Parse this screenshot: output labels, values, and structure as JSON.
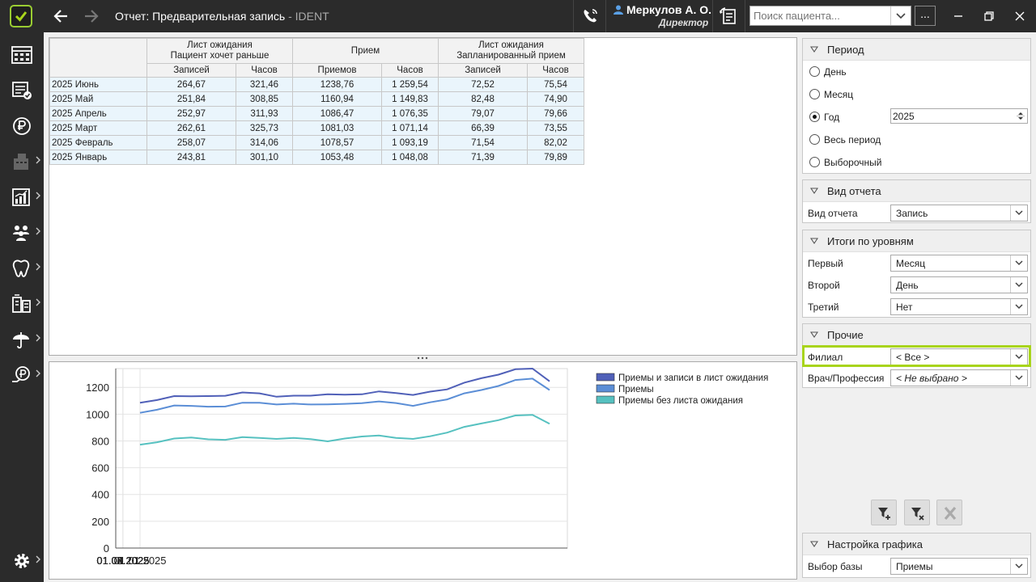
{
  "window": {
    "title": "Отчет: Предварительная запись",
    "title_suffix": " - IDENT",
    "user_name": "Меркулов А. О.",
    "user_role": "Директор",
    "search_placeholder": "Поиск пациента...",
    "more_label": "..."
  },
  "colors": {
    "accent": "#a8d41c",
    "sidebar_bg": "#2b2b2b",
    "row_bg": "#eaf5fc"
  },
  "sidebar": {
    "items": [
      {
        "icon": "schedule-icon"
      },
      {
        "icon": "appointments-list-icon"
      },
      {
        "icon": "ruble-icon"
      },
      {
        "icon": "cash-register-icon"
      },
      {
        "icon": "reports-chart-icon"
      },
      {
        "icon": "patients-group-icon"
      },
      {
        "icon": "tooth-icon"
      },
      {
        "icon": "warehouse-icon"
      },
      {
        "icon": "insurance-umbrella-icon"
      },
      {
        "icon": "bonus-ruble-icon"
      },
      {
        "icon": "settings-gear-icon"
      }
    ]
  },
  "table": {
    "group_headers": [
      {
        "line1": "Лист ожидания",
        "line2": "Пациент хочет раньше"
      },
      {
        "line1": "Прием",
        "line2": ""
      },
      {
        "line1": "Лист ожидания",
        "line2": "Запланированный прием"
      }
    ],
    "sub_headers": [
      "Записей",
      "Часов",
      "Приемов",
      "Часов",
      "Записей",
      "Часов"
    ],
    "rows": [
      {
        "label": "2025 Июнь",
        "cells": [
          "264,67",
          "321,46",
          "1238,76",
          "1 259,54",
          "72,52",
          "75,54"
        ]
      },
      {
        "label": "2025 Май",
        "cells": [
          "251,84",
          "308,85",
          "1160,94",
          "1 149,83",
          "82,48",
          "74,90"
        ]
      },
      {
        "label": "2025 Апрель",
        "cells": [
          "252,97",
          "311,93",
          "1086,47",
          "1 076,35",
          "79,07",
          "79,66"
        ]
      },
      {
        "label": "2025 Март",
        "cells": [
          "262,61",
          "325,73",
          "1081,03",
          "1 071,14",
          "66,39",
          "73,55"
        ]
      },
      {
        "label": "2025 Февраль",
        "cells": [
          "258,07",
          "314,06",
          "1078,57",
          "1 093,19",
          "71,54",
          "82,02"
        ]
      },
      {
        "label": "2025 Январь",
        "cells": [
          "243,81",
          "301,10",
          "1053,48",
          "1 048,08",
          "71,39",
          "79,89"
        ]
      }
    ]
  },
  "chart_data": {
    "type": "line",
    "x": [
      "01.01.2025",
      "08.01.2025",
      "15.01.2025",
      "22.01.2025",
      "29.01.2025",
      "05.02.2025",
      "12.02.2025",
      "19.02.2025",
      "26.02.2025",
      "05.03.2025",
      "12.03.2025",
      "19.03.2025",
      "26.03.2025",
      "02.04.2025",
      "09.04.2025",
      "16.04.2025",
      "23.04.2025",
      "30.04.2025",
      "07.05.2025",
      "14.05.2025",
      "21.05.2025",
      "28.05.2025",
      "04.06.2025",
      "11.06.2025",
      "18.06.2025"
    ],
    "x_ticks": [
      "01.01.2025",
      "01.02.2025",
      "01.03.2025",
      "01.04.2025",
      "01.05.2025",
      "01.06.2025"
    ],
    "ylim": [
      0,
      1340
    ],
    "y_ticks": [
      0,
      200,
      400,
      600,
      800,
      1000,
      1200
    ],
    "grid": true,
    "legend_position": "top-right",
    "series": [
      {
        "name": "Приемы и записи в лист ожидания",
        "color": "#5060b8",
        "values": [
          1085,
          1105,
          1135,
          1133,
          1135,
          1137,
          1162,
          1155,
          1130,
          1138,
          1138,
          1148,
          1145,
          1148,
          1170,
          1158,
          1143,
          1168,
          1185,
          1235,
          1268,
          1295,
          1335,
          1340,
          1245
        ]
      },
      {
        "name": "Приемы",
        "color": "#5b8ed6",
        "values": [
          1010,
          1033,
          1065,
          1062,
          1056,
          1057,
          1085,
          1085,
          1072,
          1078,
          1072,
          1073,
          1077,
          1082,
          1095,
          1083,
          1062,
          1088,
          1110,
          1155,
          1180,
          1210,
          1255,
          1265,
          1180
        ]
      },
      {
        "name": "Приемы без листа ожидания",
        "color": "#56c1c0",
        "values": [
          772,
          790,
          818,
          825,
          812,
          808,
          828,
          822,
          815,
          822,
          813,
          797,
          818,
          833,
          840,
          823,
          815,
          835,
          862,
          905,
          930,
          955,
          990,
          995,
          928
        ]
      }
    ]
  },
  "panels": {
    "period": {
      "title": "Период",
      "options": [
        {
          "label": "День",
          "selected": false
        },
        {
          "label": "Месяц",
          "selected": false
        },
        {
          "label": "Год",
          "selected": true
        },
        {
          "label": "Весь период",
          "selected": false
        },
        {
          "label": "Выборочный",
          "selected": false
        }
      ],
      "year_value": "2025"
    },
    "view": {
      "title": "Вид отчета",
      "label": "Вид отчета",
      "value": "Запись"
    },
    "totals": {
      "title": "Итоги по уровням",
      "rows": [
        {
          "label": "Первый",
          "value": "Месяц"
        },
        {
          "label": "Второй",
          "value": "День"
        },
        {
          "label": "Третий",
          "value": "Нет"
        }
      ]
    },
    "other": {
      "title": "Прочие",
      "branch_label": "Филиал",
      "branch_value": "< Все >",
      "doctor_label": "Врач/Профессия",
      "doctor_value": "< Не выбрано >"
    },
    "chart_settings": {
      "title": "Настройка графика",
      "base_label": "Выбор базы",
      "base_value": "Приемы"
    }
  }
}
